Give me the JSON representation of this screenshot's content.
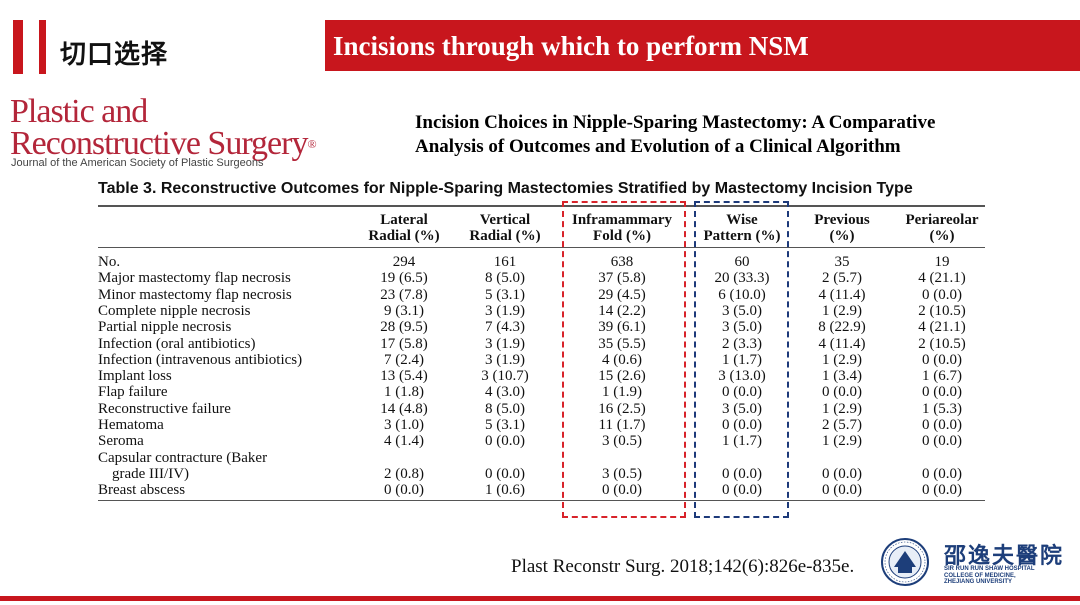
{
  "header": {
    "chinese_title": "切口选择",
    "banner_title": "Incisions through which to perform NSM"
  },
  "journal": {
    "name_line1": "Plastic and",
    "name_line2": "Reconstructive Surgery",
    "reg_mark": "®",
    "subtitle": "Journal of the American Society of Plastic Surgeons"
  },
  "paper": {
    "title_line1": "Incision Choices in Nipple-Sparing Mastectomy: A Comparative",
    "title_line2": "Analysis of Outcomes and Evolution of a Clinical Algorithm"
  },
  "table": {
    "title": "Table 3.  Reconstructive Outcomes for Nipple-Sparing Mastectomies Stratified by Mastectomy Incision Type",
    "columns": [
      {
        "line1": "Lateral",
        "line2": "Radial (%)"
      },
      {
        "line1": "Vertical",
        "line2": "Radial (%)"
      },
      {
        "line1": "Inframammary",
        "line2": "Fold (%)"
      },
      {
        "line1": "Wise",
        "line2": "Pattern (%)"
      },
      {
        "line1": "Previous",
        "line2": "(%)"
      },
      {
        "line1": "Periareolar",
        "line2": "(%)"
      }
    ],
    "rows": [
      {
        "label": "No.",
        "values": [
          "294",
          "161",
          "638",
          "60",
          "35",
          "19"
        ]
      },
      {
        "label": "Major mastectomy flap necrosis",
        "values": [
          "19 (6.5)",
          "8 (5.0)",
          "37 (5.8)",
          "20 (33.3)",
          "2 (5.7)",
          "4 (21.1)"
        ]
      },
      {
        "label": "Minor mastectomy flap necrosis",
        "values": [
          "23 (7.8)",
          "5 (3.1)",
          "29 (4.5)",
          "6 (10.0)",
          "4 (11.4)",
          "0 (0.0)"
        ]
      },
      {
        "label": "Complete nipple necrosis",
        "values": [
          "9 (3.1)",
          "3 (1.9)",
          "14 (2.2)",
          "3 (5.0)",
          "1 (2.9)",
          "2 (10.5)"
        ]
      },
      {
        "label": "Partial nipple necrosis",
        "values": [
          "28 (9.5)",
          "7 (4.3)",
          "39 (6.1)",
          "3 (5.0)",
          "8 (22.9)",
          "4 (21.1)"
        ]
      },
      {
        "label": "Infection (oral antibiotics)",
        "values": [
          "17 (5.8)",
          "3 (1.9)",
          "35 (5.5)",
          "2 (3.3)",
          "4 (11.4)",
          "2 (10.5)"
        ]
      },
      {
        "label": "Infection (intravenous antibiotics)",
        "values": [
          "7 (2.4)",
          "3 (1.9)",
          "4 (0.6)",
          "1 (1.7)",
          "1 (2.9)",
          "0 (0.0)"
        ]
      },
      {
        "label": "Implant loss",
        "values": [
          "13 (5.4)",
          "3 (10.7)",
          "15 (2.6)",
          "3 (13.0)",
          "1 (3.4)",
          "1 (6.7)"
        ]
      },
      {
        "label": "Flap failure",
        "values": [
          "1 (1.8)",
          "4 (3.0)",
          "1 (1.9)",
          "0 (0.0)",
          "0 (0.0)",
          "0 (0.0)"
        ]
      },
      {
        "label": "Reconstructive failure",
        "values": [
          "14 (4.8)",
          "8 (5.0)",
          "16 (2.5)",
          "3 (5.0)",
          "1 (2.9)",
          "1 (5.3)"
        ]
      },
      {
        "label": "Hematoma",
        "values": [
          "3 (1.0)",
          "5 (3.1)",
          "11 (1.7)",
          "0 (0.0)",
          "2 (5.7)",
          "0 (0.0)"
        ]
      },
      {
        "label": "Seroma",
        "values": [
          "4 (1.4)",
          "0 (0.0)",
          "3 (0.5)",
          "1 (1.7)",
          "1 (2.9)",
          "0 (0.0)"
        ]
      },
      {
        "label": "Capsular contracture (Baker",
        "label2": "grade III/IV)",
        "values": [
          "2 (0.8)",
          "0 (0.0)",
          "3 (0.5)",
          "0 (0.0)",
          "0 (0.0)",
          "0 (0.0)"
        ]
      },
      {
        "label": "Breast abscess",
        "values": [
          "0 (0.0)",
          "1 (0.6)",
          "0 (0.0)",
          "0 (0.0)",
          "0 (0.0)",
          "0 (0.0)"
        ]
      }
    ]
  },
  "citation": "Plast Reconstr Surg. 2018;142(6):826e-835e.",
  "hospital": {
    "name_cn": "邵逸夫醫院",
    "name_en_line1": "SIR RUN RUN SHAW HOSPITAL",
    "name_en_line2": "COLLEGE OF MEDICINE,",
    "name_en_line3": "ZHEJIANG UNIVERSITY"
  },
  "colors": {
    "accent_red": "#c8161d",
    "journal_red": "#b3263a",
    "hospital_blue": "#1d3e7a"
  }
}
